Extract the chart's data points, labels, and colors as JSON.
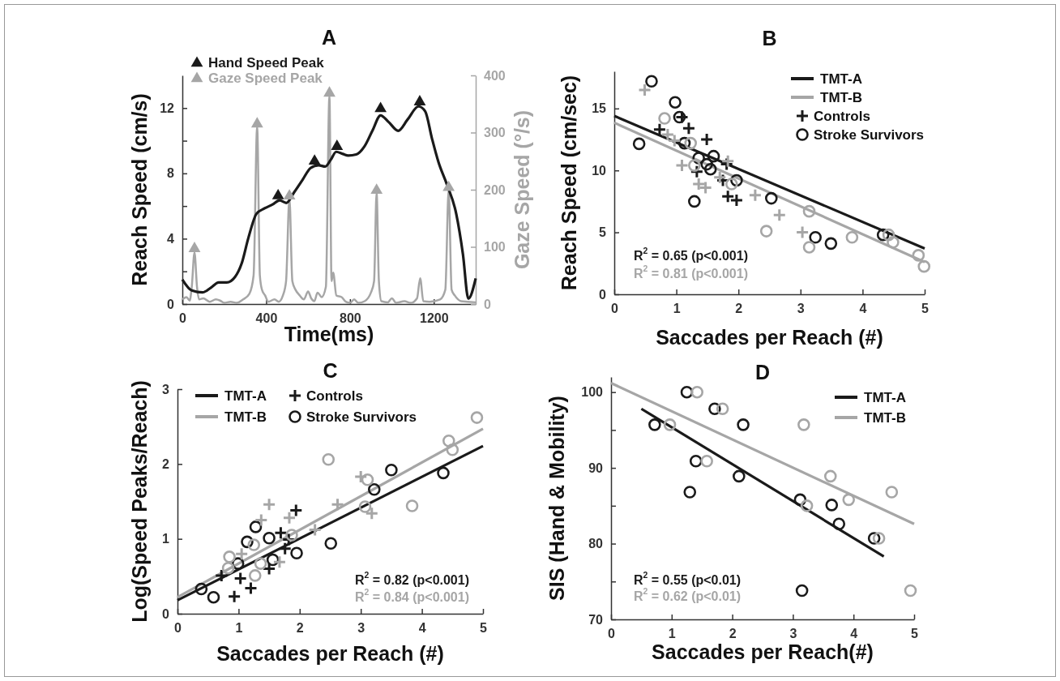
{
  "chart_data": [
    {
      "type": "line",
      "title": "A",
      "xlabel": "Time(ms)",
      "ylabel": "Reach Speed (cm/s)",
      "y2label": "Gaze Speed (°/s)",
      "xlim": [
        0,
        1400
      ],
      "xticks": [
        0,
        400,
        800,
        1200
      ],
      "ylim": [
        0,
        14
      ],
      "yticks": [
        0,
        {
          "value": 2,
          "label": null
        },
        4,
        {
          "value": 6,
          "label": null
        },
        8,
        {
          "value": 10,
          "label": null
        },
        12
      ],
      "y2lim": [
        0,
        400
      ],
      "y2ticks": [
        0,
        100,
        200,
        300,
        400
      ],
      "legend": "top left",
      "grid": false,
      "series": [
        {
          "color": "#a6a6a6",
          "axis": "y2",
          "x": [
            0,
            20,
            35,
            45,
            58,
            70,
            80,
            100,
            130,
            160,
            180,
            200,
            230,
            260,
            290,
            320,
            340,
            357,
            370,
            380,
            395,
            410,
            440,
            460,
            480,
            495,
            511,
            525,
            540,
            560,
            580,
            600,
            615,
            630,
            645,
            665,
            685,
            702,
            712,
            720,
            735,
            760,
            780,
            800,
            820,
            840,
            870,
            900,
            915,
            927,
            938,
            950,
            980,
            1000,
            1020,
            1060,
            1090,
            1120,
            1135,
            1150,
            1180,
            1230,
            1255,
            1271,
            1285,
            1300,
            1330,
            1360,
            1400
          ],
          "values": [
            8,
            12,
            6,
            30,
            90,
            30,
            8,
            10,
            4,
            8,
            6,
            2,
            4,
            2,
            8,
            18,
            50,
            310,
            50,
            25,
            15,
            4,
            8,
            4,
            15,
            40,
            185,
            40,
            25,
            15,
            8,
            22,
            10,
            5,
            20,
            12,
            30,
            365,
            40,
            55,
            15,
            12,
            4,
            2,
            8,
            2,
            5,
            20,
            40,
            195,
            40,
            5,
            3,
            10,
            2,
            5,
            2,
            10,
            45,
            5,
            4,
            8,
            25,
            200,
            25,
            15,
            5,
            4,
            3
          ]
        },
        {
          "color": "#1a1a1a",
          "x": [
            0,
            45,
            97,
            135,
            174,
            212,
            251,
            283,
            315,
            354,
            393,
            431,
            464,
            496,
            534,
            573,
            612,
            650,
            682,
            708,
            734,
            766,
            792,
            830,
            869,
            908,
            946,
            985,
            1030,
            1075,
            1127,
            1159,
            1191,
            1223,
            1262,
            1307,
            1339,
            1365,
            1400
          ],
          "values": [
            1.5,
            0.83,
            0.71,
            0.99,
            1.32,
            1.32,
            1.65,
            2.48,
            4.04,
            5.53,
            5.86,
            6.1,
            6.35,
            6.19,
            6.85,
            7.59,
            8.33,
            8.5,
            8.42,
            8.83,
            9.32,
            9.19,
            9.09,
            9.16,
            9.65,
            10.64,
            11.55,
            11.14,
            10.61,
            11.3,
            12.1,
            11.8,
            10.15,
            8.66,
            7.34,
            5.53,
            3.05,
            0.33,
            1.57
          ]
        },
        {
          "type": "scatter",
          "name": "Hand Speed Peak",
          "color": "#1a1a1a",
          "marker": "triangle",
          "x": [
            457,
            631,
            738,
            946,
            1133
          ],
          "values": [
            6.63,
            8.75,
            9.65,
            11.96,
            12.38
          ]
        },
        {
          "type": "scatter",
          "name": "Gaze Speed Peak",
          "color": "#a6a6a6",
          "marker": "triangle",
          "axis": "y2",
          "x": [
            58,
            357,
            511,
            702,
            927,
            1271
          ],
          "values": [
            97,
            315,
            189,
            369,
            199,
            204
          ]
        }
      ]
    },
    {
      "type": "scatter",
      "title": "B",
      "xlabel": "Saccades per Reach (#)",
      "ylabel": "Reach Speed (cm/sec)",
      "xlim": [
        0,
        5
      ],
      "xticks": [
        0,
        1,
        2,
        3,
        4,
        5
      ],
      "ylim": [
        0,
        18
      ],
      "yticks": [
        0,
        5,
        10,
        15
      ],
      "legend": "top right",
      "grid": false,
      "annotations": [
        "R$^{2}$ = 0.65 (p<0.001)",
        "R$^{2}$ = 0.81 (p<0.001)"
      ],
      "series": [
        {
          "type": "line",
          "name": "TMT-A",
          "color": "#1a1a1a",
          "x": [
            0,
            5
          ],
          "values": [
            14.4,
            3.7
          ]
        },
        {
          "type": "line",
          "name": "TMT-B",
          "color": "#a6a6a6",
          "x": [
            0,
            5
          ],
          "values": [
            13.85,
            2.6
          ]
        },
        {
          "name": "Controls",
          "color": "#1a1a1a",
          "marker": "cross",
          "x": [
            0.73,
            1.09,
            1.2,
            1.49,
            1.33,
            1.81,
            1.75,
            1.83,
            1.97
          ],
          "values": [
            13.3,
            14.3,
            13.4,
            12.5,
            9.9,
            10.5,
            9.2,
            7.9,
            7.6
          ]
        },
        {
          "name": "Stroke Survivors",
          "color": "#1a1a1a",
          "marker": "circle",
          "x": [
            0.6,
            0.98,
            0.4,
            1.05,
            1.13,
            1.29,
            1.36,
            1.49,
            1.6,
            1.55,
            1.97,
            2.53,
            3.24,
            3.49,
            4.33
          ],
          "values": [
            17.2,
            15.5,
            12.15,
            14.3,
            12.2,
            7.5,
            11.0,
            10.5,
            11.15,
            10.1,
            9.2,
            7.75,
            4.6,
            4.1,
            4.8
          ]
        },
        {
          "color": "#a6a6a6",
          "marker": "cross",
          "x": [
            0.49,
            0.86,
            0.97,
            1.09,
            1.36,
            1.47,
            1.7,
            1.83,
            2.27,
            2.66,
            3.03
          ],
          "values": [
            16.5,
            12.9,
            12.4,
            10.4,
            8.9,
            8.6,
            9.45,
            10.75,
            8.0,
            6.4,
            5.0
          ]
        },
        {
          "color": "#a6a6a6",
          "marker": "circle",
          "x": [
            0.81,
            1.23,
            1.29,
            1.89,
            2.45,
            3.14,
            3.14,
            3.83,
            4.42,
            4.49,
            4.9,
            4.99
          ],
          "values": [
            14.2,
            12.2,
            10.4,
            8.9,
            5.1,
            6.7,
            3.8,
            4.6,
            4.8,
            4.2,
            3.15,
            2.25
          ]
        }
      ]
    },
    {
      "type": "scatter",
      "title": "C",
      "xlabel": "Saccades per Reach (#)",
      "ylabel": "Log(Speed Peaks/Reach)",
      "xlim": [
        0,
        5
      ],
      "xticks": [
        0,
        1,
        2,
        3,
        4,
        5
      ],
      "ylim": [
        0,
        3
      ],
      "yticks": [
        0,
        1,
        2,
        3
      ],
      "legend": "top left",
      "grid": false,
      "annotations": [
        "R$^{2}$ = 0.82 (p<0.001)",
        "R$^{2}$ = 0.84 (p<0.001)"
      ],
      "series": [
        {
          "type": "line",
          "name": "TMT-A",
          "color": "#1a1a1a",
          "x": [
            0,
            5
          ],
          "values": [
            0.18,
            2.24
          ]
        },
        {
          "type": "line",
          "name": "TMT-B",
          "color": "#a6a6a6",
          "x": [
            0,
            5
          ],
          "values": [
            0.22,
            2.47
          ]
        },
        {
          "name": "Controls",
          "color": "#1a1a1a",
          "marker": "cross",
          "x": [
            0.93,
            1.03,
            1.2,
            1.5,
            1.69,
            1.82,
            1.76,
            1.94,
            0.72
          ],
          "values": [
            0.23,
            0.47,
            0.34,
            0.6,
            1.08,
            0.99,
            0.87,
            1.38,
            0.51
          ]
        },
        {
          "name": "Stroke Survivors",
          "color": "#1a1a1a",
          "marker": "circle",
          "x": [
            0.39,
            0.59,
            0.99,
            1.14,
            1.28,
            1.5,
            1.56,
            1.95,
            2.51,
            3.22,
            3.5,
            4.35
          ],
          "values": [
            0.33,
            0.22,
            0.67,
            0.96,
            1.16,
            1.01,
            0.72,
            0.81,
            0.94,
            1.66,
            1.92,
            1.88
          ]
        },
        {
          "color": "#a6a6a6",
          "marker": "cross",
          "x": [
            1.5,
            1.37,
            1.83,
            1.67,
            2.25,
            2.62,
            3.0,
            3.18,
            1.05
          ],
          "values": [
            1.46,
            1.25,
            1.28,
            0.69,
            1.12,
            1.46,
            1.83,
            1.34,
            0.8
          ]
        },
        {
          "color": "#a6a6a6",
          "marker": "circle",
          "x": [
            0.85,
            0.83,
            1.25,
            1.36,
            1.27,
            1.87,
            2.47,
            3.11,
            3.07,
            3.84,
            4.44,
            4.5,
            4.9
          ],
          "values": [
            0.76,
            0.61,
            0.92,
            0.67,
            0.51,
            1.05,
            2.06,
            1.79,
            1.43,
            1.44,
            2.31,
            2.19,
            2.62
          ]
        }
      ]
    },
    {
      "type": "scatter",
      "title": "D",
      "xlabel": "Saccades per Reach(#)",
      "ylabel": "SIS (Hand & Mobility)",
      "xlim": [
        0,
        5
      ],
      "xticks": [
        0,
        1,
        2,
        3,
        4,
        5
      ],
      "ylim": [
        70,
        102
      ],
      "yticks": [
        70,
        {
          "value": 75,
          "label": null
        },
        80,
        {
          "value": 85,
          "label": null
        },
        90,
        {
          "value": 95,
          "label": null
        },
        100
      ],
      "legend": "top right",
      "grid": false,
      "annotations": [
        "R$^{2}$ = 0.55 (p<0.01)",
        "R$^{2}$ = 0.62 (p<0.01)"
      ],
      "series": [
        {
          "type": "line",
          "name": "TMT-A",
          "color": "#1a1a1a",
          "x": [
            0.5,
            4.5
          ],
          "values": [
            97.8,
            78.3
          ]
        },
        {
          "type": "line",
          "name": "TMT-B",
          "color": "#a6a6a6",
          "x": [
            0,
            5
          ],
          "values": [
            101.2,
            82.6
          ]
        },
        {
          "color": "#1a1a1a",
          "marker": "circle",
          "x": [
            0.72,
            1.25,
            1.71,
            2.18,
            1.4,
            1.3,
            2.11,
            3.12,
            3.64,
            3.76,
            4.34,
            3.15
          ],
          "values": [
            95.7,
            100,
            97.8,
            95.7,
            90.9,
            86.8,
            88.9,
            85.8,
            85.1,
            82.6,
            80.7,
            73.8
          ]
        },
        {
          "color": "#a6a6a6",
          "marker": "circle",
          "x": [
            0.97,
            1.42,
            1.84,
            1.58,
            3.18,
            3.62,
            3.23,
            3.92,
            4.42,
            4.63,
            4.94
          ],
          "values": [
            95.7,
            100,
            97.8,
            90.9,
            95.7,
            88.9,
            85.0,
            85.8,
            80.7,
            86.8,
            73.8
          ]
        }
      ]
    }
  ]
}
